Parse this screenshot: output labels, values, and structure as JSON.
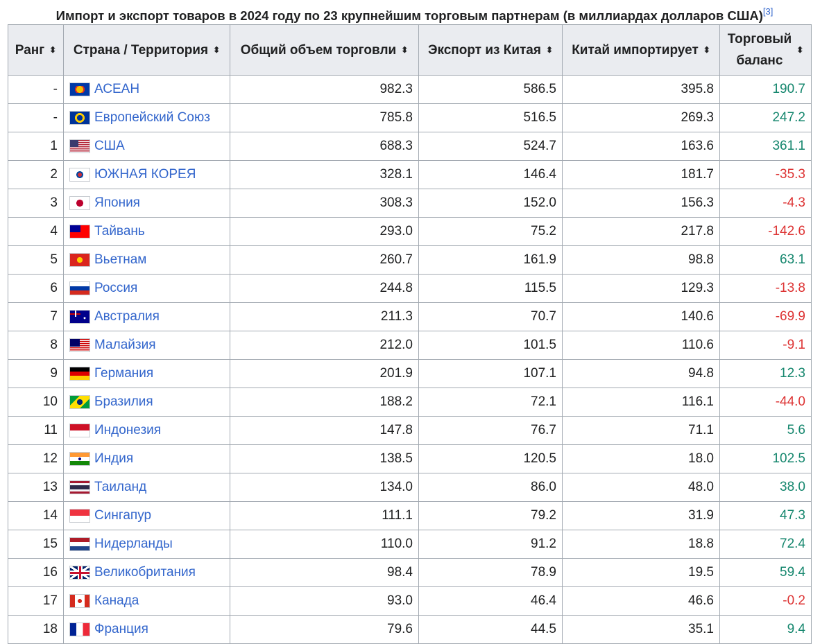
{
  "caption": "Импорт и экспорт товаров в 2024 году по 23 крупнейшим торговым партнерам (в миллиардах долларов США)",
  "caption_ref": "[3]",
  "headers": {
    "rank": "Ранг",
    "country": "Страна / Территория",
    "total": "Общий объем торговли",
    "export": "Экспорт из Китая",
    "import": "Китай импортирует",
    "balance_line1": "Торговый",
    "balance_line2": "баланс"
  },
  "sort_icon": "⬍",
  "colors": {
    "positive": "#14866d",
    "negative": "#d33333",
    "link": "#3366cc"
  },
  "rows": [
    {
      "rank": "-",
      "country": "АСЕАН",
      "flag": "asean",
      "total": "982.3",
      "export": "586.5",
      "import": "395.8",
      "balance": "190.7",
      "sign": "pos"
    },
    {
      "rank": "-",
      "country": "Европейский Союз",
      "flag": "eu",
      "total": "785.8",
      "export": "516.5",
      "import": "269.3",
      "balance": "247.2",
      "sign": "pos"
    },
    {
      "rank": "1",
      "country": "США",
      "flag": "usa",
      "total": "688.3",
      "export": "524.7",
      "import": "163.6",
      "balance": "361.1",
      "sign": "pos"
    },
    {
      "rank": "2",
      "country": "ЮЖНАЯ КОРЕЯ",
      "flag": "korea",
      "total": "328.1",
      "export": "146.4",
      "import": "181.7",
      "balance": "-35.3",
      "sign": "neg"
    },
    {
      "rank": "3",
      "country": "Япония",
      "flag": "japan",
      "total": "308.3",
      "export": "152.0",
      "import": "156.3",
      "balance": "-4.3",
      "sign": "neg"
    },
    {
      "rank": "4",
      "country": "Тайвань",
      "flag": "taiwan",
      "total": "293.0",
      "export": "75.2",
      "import": "217.8",
      "balance": "-142.6",
      "sign": "neg"
    },
    {
      "rank": "5",
      "country": "Вьетнам",
      "flag": "vietnam",
      "total": "260.7",
      "export": "161.9",
      "import": "98.8",
      "balance": "63.1",
      "sign": "pos"
    },
    {
      "rank": "6",
      "country": "Россия",
      "flag": "russia",
      "total": "244.8",
      "export": "115.5",
      "import": "129.3",
      "balance": "-13.8",
      "sign": "neg"
    },
    {
      "rank": "7",
      "country": "Австралия",
      "flag": "australia",
      "total": "211.3",
      "export": "70.7",
      "import": "140.6",
      "balance": "-69.9",
      "sign": "neg"
    },
    {
      "rank": "8",
      "country": "Малайзия",
      "flag": "malaysia",
      "total": "212.0",
      "export": "101.5",
      "import": "110.6",
      "balance": "-9.1",
      "sign": "neg"
    },
    {
      "rank": "9",
      "country": "Германия",
      "flag": "germany",
      "total": "201.9",
      "export": "107.1",
      "import": "94.8",
      "balance": "12.3",
      "sign": "pos"
    },
    {
      "rank": "10",
      "country": "Бразилия",
      "flag": "brazil",
      "total": "188.2",
      "export": "72.1",
      "import": "116.1",
      "balance": "-44.0",
      "sign": "neg"
    },
    {
      "rank": "11",
      "country": "Индонезия",
      "flag": "indonesia",
      "total": "147.8",
      "export": "76.7",
      "import": "71.1",
      "balance": "5.6",
      "sign": "pos"
    },
    {
      "rank": "12",
      "country": "Индия",
      "flag": "india",
      "total": "138.5",
      "export": "120.5",
      "import": "18.0",
      "balance": "102.5",
      "sign": "pos"
    },
    {
      "rank": "13",
      "country": "Таиланд",
      "flag": "thailand",
      "total": "134.0",
      "export": "86.0",
      "import": "48.0",
      "balance": "38.0",
      "sign": "pos"
    },
    {
      "rank": "14",
      "country": "Сингапур",
      "flag": "singapore",
      "total": "111.1",
      "export": "79.2",
      "import": "31.9",
      "balance": "47.3",
      "sign": "pos"
    },
    {
      "rank": "15",
      "country": "Нидерланды",
      "flag": "netherlands",
      "total": "110.0",
      "export": "91.2",
      "import": "18.8",
      "balance": "72.4",
      "sign": "pos"
    },
    {
      "rank": "16",
      "country": "Великобритания",
      "flag": "uk",
      "total": "98.4",
      "export": "78.9",
      "import": "19.5",
      "balance": "59.4",
      "sign": "pos"
    },
    {
      "rank": "17",
      "country": "Канада",
      "flag": "canada",
      "total": "93.0",
      "export": "46.4",
      "import": "46.6",
      "balance": "-0.2",
      "sign": "neg"
    },
    {
      "rank": "18",
      "country": "Франция",
      "flag": "france",
      "total": "79.6",
      "export": "44.5",
      "import": "35.1",
      "balance": "9.4",
      "sign": "pos"
    }
  ]
}
